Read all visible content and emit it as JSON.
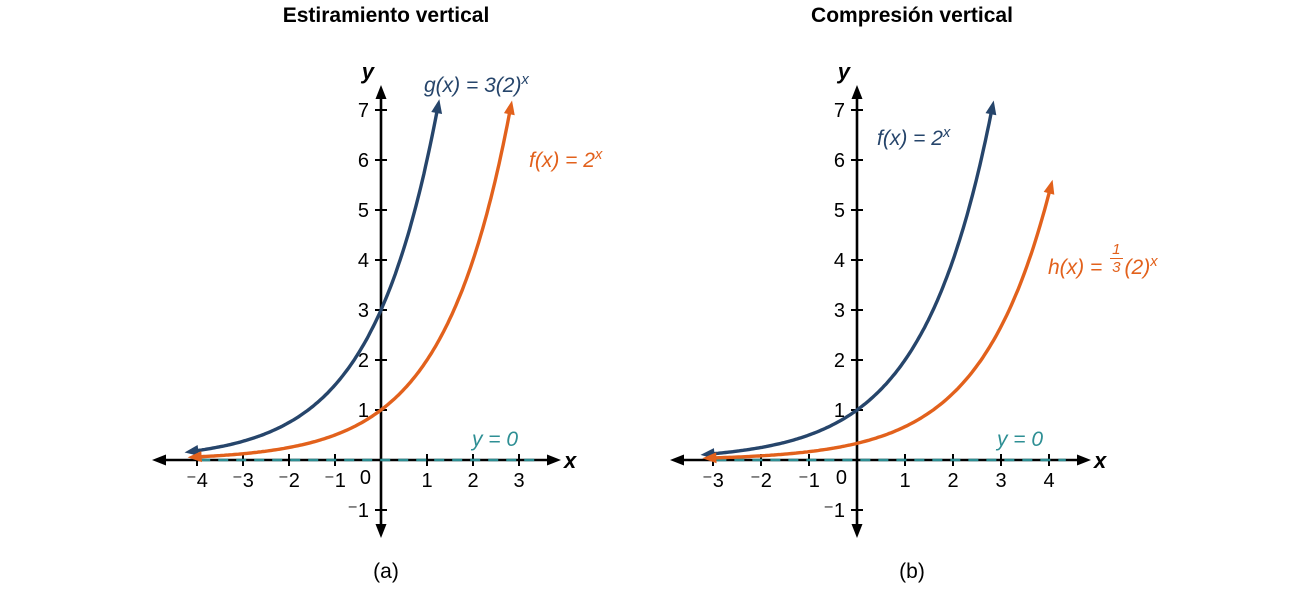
{
  "colors": {
    "navy": "#26456b",
    "orange": "#e2611c",
    "teal": "#2e8f94",
    "axis": "#000000"
  },
  "chart_data": [
    {
      "id": "a",
      "type": "line",
      "title": "Estiramiento vertical",
      "caption": "(a)",
      "x_axis": {
        "label": "x",
        "min": -4,
        "max": 3,
        "ticks": [
          -4,
          -3,
          -2,
          -1,
          1,
          2,
          3
        ]
      },
      "y_axis": {
        "label": "y",
        "min": -1,
        "max": 7,
        "ticks": [
          -1,
          1,
          2,
          3,
          4,
          5,
          6,
          7
        ]
      },
      "origin_label": "0",
      "grid": false,
      "asymptote": {
        "label": "y = 0",
        "y": 0,
        "x_start": -3.93,
        "x_end": 3.45
      },
      "series": [
        {
          "name": "g",
          "formula": "g(x) = 3(2)^x",
          "color_key": "navy",
          "coef": 3,
          "base": 2,
          "x_start": -3.97,
          "x_end": 1.21,
          "y_intercept": 3,
          "label": {
            "pre": "g(x) = 3(2)",
            "sup": "x"
          }
        },
        {
          "name": "f",
          "formula": "f(x) = 2^x",
          "color_key": "orange",
          "coef": 1,
          "base": 2,
          "x_start": -3.9,
          "x_end": 2.79,
          "y_intercept": 1,
          "label": {
            "pre": "f(x) = 2",
            "sup": "x"
          }
        }
      ]
    },
    {
      "id": "b",
      "type": "line",
      "title": "Compresión vertical",
      "caption": "(b)",
      "x_axis": {
        "label": "x",
        "min": -3,
        "max": 4,
        "ticks": [
          -3,
          -2,
          -1,
          1,
          2,
          3,
          4
        ]
      },
      "y_axis": {
        "label": "y",
        "min": -1,
        "max": 7,
        "ticks": [
          -1,
          1,
          2,
          3,
          4,
          5,
          6,
          7
        ]
      },
      "origin_label": "0",
      "grid": false,
      "asymptote": {
        "label": "y = 0",
        "y": 0,
        "x_start": -2.93,
        "x_end": 4.35
      },
      "series": [
        {
          "name": "f",
          "formula": "f(x) = 2^x",
          "color_key": "navy",
          "coef": 1,
          "base": 2,
          "x_start": -2.97,
          "x_end": 2.79,
          "y_intercept": 1,
          "label": {
            "pre": "f(x) = 2",
            "sup": "x"
          }
        },
        {
          "name": "h",
          "formula": "h(x) = (1/3)(2)^x",
          "color_key": "orange",
          "coef": 0.3333333,
          "base": 2,
          "x_start": -2.93,
          "x_end": 4.0,
          "y_intercept": 0.333,
          "label": {
            "pre": "h(x) = ",
            "frac_num": "1",
            "frac_den": "3",
            "mid": "(2)",
            "sup": "x"
          }
        }
      ]
    }
  ]
}
